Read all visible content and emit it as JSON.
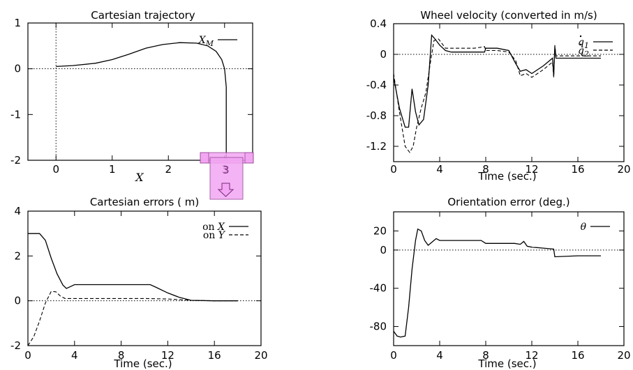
{
  "chart_data": [
    {
      "id": "cartesian-trajectory",
      "type": "line",
      "title": "Cartesian trajectory",
      "xlabel": "X",
      "xlim": [
        -0.5,
        3.5
      ],
      "ylim": [
        -2,
        1
      ],
      "xticks": [
        "0",
        "1",
        "2",
        "3"
      ],
      "xtick_values": [
        0,
        1,
        2,
        3
      ],
      "yticks": [
        "1",
        "0",
        "-1",
        "-2"
      ],
      "ytick_values": [
        1,
        0,
        -1,
        -2
      ],
      "zero_lines": [
        "x",
        "y"
      ],
      "legend_position": "top-right",
      "series": [
        {
          "name": "X_M",
          "style": "solid",
          "x": [
            0.0,
            0.3,
            0.7,
            1.0,
            1.3,
            1.6,
            1.9,
            2.2,
            2.5,
            2.7,
            2.85,
            2.95,
            3.0,
            3.03,
            3.03,
            3.03
          ],
          "y": [
            0.05,
            0.07,
            0.12,
            0.2,
            0.32,
            0.45,
            0.53,
            0.57,
            0.56,
            0.5,
            0.38,
            0.2,
            0.0,
            -0.4,
            -1.2,
            -2.0
          ]
        }
      ],
      "legend": [
        {
          "label": "X",
          "sub": "M",
          "style": "solid"
        }
      ]
    },
    {
      "id": "wheel-velocity",
      "type": "line",
      "title": "Wheel velocity (converted in m/s)",
      "xlabel": "Time (sec.)",
      "xlim": [
        0,
        20
      ],
      "ylim": [
        -1.4,
        0.4
      ],
      "xticks": [
        "0",
        "4",
        "8",
        "12",
        "16",
        "20"
      ],
      "xtick_values": [
        0,
        4,
        8,
        12,
        16,
        20
      ],
      "yticks": [
        "0.4",
        "0",
        "-0.4",
        "-0.8",
        "-1.2"
      ],
      "ytick_values": [
        0.4,
        0,
        -0.4,
        -0.8,
        -1.2
      ],
      "zero_lines": [
        "y"
      ],
      "legend_position": "top-right",
      "series": [
        {
          "name": "q̇1",
          "style": "solid",
          "x": [
            0,
            0.5,
            1.0,
            1.3,
            1.6,
            1.9,
            2.2,
            2.6,
            3.0,
            3.3,
            3.6,
            4.0,
            4.5,
            5.0,
            6.0,
            7.0,
            7.9,
            8.0,
            9.0,
            10.0,
            10.6,
            11.0,
            11.5,
            12.0,
            13.0,
            13.8,
            13.9,
            14.0,
            14.1,
            14.5,
            16.0,
            18.0
          ],
          "y": [
            -0.3,
            -0.7,
            -0.95,
            -0.95,
            -0.45,
            -0.75,
            -0.92,
            -0.85,
            -0.4,
            0.25,
            0.2,
            0.12,
            0.05,
            0.03,
            0.03,
            0.03,
            0.03,
            0.08,
            0.08,
            0.05,
            -0.12,
            -0.22,
            -0.2,
            -0.25,
            -0.15,
            -0.05,
            -0.28,
            0.1,
            -0.05,
            -0.05,
            -0.05,
            -0.05
          ]
        },
        {
          "name": "q̇2",
          "style": "dashed",
          "x": [
            0,
            0.5,
            1.0,
            1.4,
            1.7,
            2.0,
            2.4,
            2.8,
            3.2,
            3.5,
            3.9,
            4.5,
            5.0,
            6.0,
            7.0,
            7.9,
            8.0,
            9.0,
            10.0,
            10.6,
            11.0,
            11.5,
            12.0,
            13.0,
            13.8,
            13.9,
            14.0,
            14.1,
            14.5,
            16.0,
            18.0
          ],
          "y": [
            -0.25,
            -0.75,
            -1.2,
            -1.28,
            -1.2,
            -0.95,
            -0.7,
            -0.5,
            -0.1,
            0.18,
            0.2,
            0.08,
            0.08,
            0.08,
            0.08,
            0.1,
            0.05,
            0.05,
            0.03,
            -0.08,
            -0.28,
            -0.25,
            -0.3,
            -0.2,
            -0.1,
            -0.3,
            0.12,
            -0.02,
            -0.02,
            -0.02,
            -0.02
          ]
        }
      ],
      "legend": [
        {
          "label": "q",
          "sub": "1",
          "dot": true,
          "style": "solid"
        },
        {
          "label": "q",
          "sub": "2",
          "dot": true,
          "style": "dashed"
        }
      ]
    },
    {
      "id": "cartesian-errors",
      "type": "line",
      "title": "Cartesian errors ( m)",
      "xlabel": "Time (sec.)",
      "xlim": [
        0,
        20
      ],
      "ylim": [
        -2,
        4
      ],
      "xticks": [
        "0",
        "4",
        "8",
        "12",
        "16",
        "20"
      ],
      "xtick_values": [
        0,
        4,
        8,
        12,
        16,
        20
      ],
      "yticks": [
        "4",
        "2",
        "0",
        "-2"
      ],
      "ytick_values": [
        4,
        2,
        0,
        -2
      ],
      "zero_lines": [
        "y"
      ],
      "legend_position": "top-right",
      "series": [
        {
          "name": "on X",
          "style": "solid",
          "x": [
            0,
            1.0,
            1.5,
            2.0,
            2.5,
            3.0,
            3.3,
            3.6,
            4.0,
            5.0,
            7.0,
            9.0,
            10.5,
            11.0,
            12.0,
            13.0,
            14.0,
            16.0,
            18.0
          ],
          "y": [
            3.0,
            3.0,
            2.7,
            1.9,
            1.2,
            0.7,
            0.55,
            0.62,
            0.72,
            0.72,
            0.72,
            0.72,
            0.72,
            0.6,
            0.35,
            0.15,
            0.02,
            0.0,
            0.0
          ]
        },
        {
          "name": "on Y",
          "style": "dashed",
          "x": [
            0,
            0.5,
            1.0,
            1.5,
            2.0,
            2.4,
            2.8,
            3.2,
            4.0,
            6.0,
            8.0,
            10.0,
            12.0,
            14.0,
            16.0,
            18.0
          ],
          "y": [
            -2.0,
            -1.6,
            -0.9,
            -0.1,
            0.42,
            0.4,
            0.2,
            0.1,
            0.1,
            0.1,
            0.1,
            0.1,
            0.08,
            0.02,
            0.0,
            0.0
          ]
        }
      ],
      "legend": [
        {
          "label": "on",
          "var": "X",
          "style": "solid"
        },
        {
          "label": "on",
          "var": "Y",
          "style": "dashed"
        }
      ]
    },
    {
      "id": "orientation-error",
      "type": "line",
      "title": "Orientation error (deg.)",
      "xlabel": "Time (sec.)",
      "xlim": [
        0,
        20
      ],
      "ylim": [
        -100,
        40
      ],
      "xticks": [
        "0",
        "4",
        "8",
        "12",
        "16",
        "20"
      ],
      "xtick_values": [
        0,
        4,
        8,
        12,
        16,
        20
      ],
      "yticks": [
        "20",
        "0",
        "-40",
        "-80"
      ],
      "ytick_values": [
        20,
        0,
        -40,
        -80
      ],
      "zero_lines": [
        "y"
      ],
      "legend_position": "top-right",
      "series": [
        {
          "name": "θ",
          "style": "solid",
          "x": [
            0,
            0.3,
            0.6,
            1.0,
            1.3,
            1.6,
            1.9,
            2.1,
            2.4,
            2.7,
            3.0,
            3.3,
            3.7,
            4.0,
            5.0,
            6.5,
            7.6,
            8.0,
            9.0,
            10.5,
            11.0,
            11.3,
            11.6,
            12.0,
            13.0,
            13.9,
            14.0,
            16.0,
            18.0
          ],
          "y": [
            -85,
            -90,
            -91,
            -90,
            -60,
            -20,
            10,
            22,
            20,
            10,
            5,
            8,
            12,
            10,
            10,
            10,
            10,
            7,
            7,
            7,
            6,
            9,
            4,
            3,
            2,
            1,
            -7,
            -6,
            -6
          ]
        }
      ],
      "legend": [
        {
          "label": "θ",
          "style": "solid"
        }
      ]
    }
  ],
  "overlay": {
    "label": "3",
    "fill": "#f3a6f3"
  }
}
